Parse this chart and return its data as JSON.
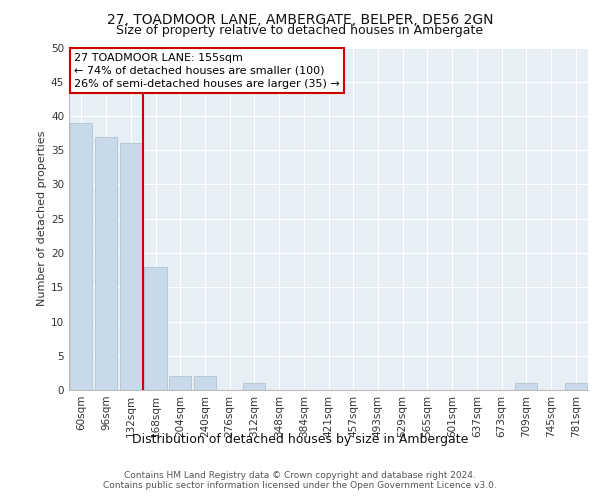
{
  "title1": "27, TOADMOOR LANE, AMBERGATE, BELPER, DE56 2GN",
  "title2": "Size of property relative to detached houses in Ambergate",
  "xlabel": "Distribution of detached houses by size in Ambergate",
  "ylabel": "Number of detached properties",
  "categories": [
    "60sqm",
    "96sqm",
    "132sqm",
    "168sqm",
    "204sqm",
    "240sqm",
    "276sqm",
    "312sqm",
    "348sqm",
    "384sqm",
    "421sqm",
    "457sqm",
    "493sqm",
    "529sqm",
    "565sqm",
    "601sqm",
    "637sqm",
    "673sqm",
    "709sqm",
    "745sqm",
    "781sqm"
  ],
  "values": [
    39,
    37,
    36,
    18,
    2,
    2,
    0,
    1,
    0,
    0,
    0,
    0,
    0,
    0,
    0,
    0,
    0,
    0,
    1,
    0,
    1
  ],
  "bar_color": "#c8d9ea",
  "bar_edge_color": "#aabdcc",
  "annotation_text_line1": "27 TOADMOOR LANE: 155sqm",
  "annotation_text_line2": "← 74% of detached houses are smaller (100)",
  "annotation_text_line3": "26% of semi-detached houses are larger (35) →",
  "annotation_box_color": "#cc0000",
  "vline_color": "#cc0000",
  "ylim": [
    0,
    50
  ],
  "yticks": [
    0,
    5,
    10,
    15,
    20,
    25,
    30,
    35,
    40,
    45,
    50
  ],
  "background_color": "#e8eef5",
  "grid_color": "#ffffff",
  "footnote1": "Contains HM Land Registry data © Crown copyright and database right 2024.",
  "footnote2": "Contains public sector information licensed under the Open Government Licence v3.0.",
  "title1_fontsize": 10,
  "title2_fontsize": 9,
  "xlabel_fontsize": 9,
  "ylabel_fontsize": 8,
  "tick_fontsize": 7.5,
  "footnote_fontsize": 6.5,
  "ann_fontsize": 8
}
